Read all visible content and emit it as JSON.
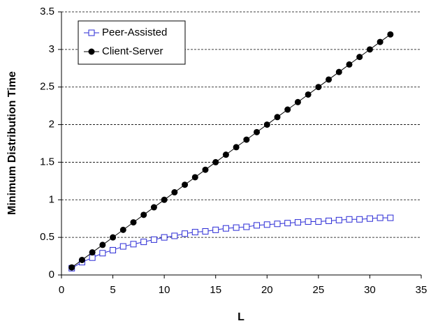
{
  "chart_data": {
    "type": "line",
    "xlabel": "L",
    "ylabel": "Minimum Distribution Time",
    "x": [
      1,
      2,
      3,
      4,
      5,
      6,
      7,
      8,
      9,
      10,
      11,
      12,
      13,
      14,
      15,
      16,
      17,
      18,
      19,
      20,
      21,
      22,
      23,
      24,
      25,
      26,
      27,
      28,
      29,
      30,
      31,
      32
    ],
    "series": [
      {
        "name": "Peer-Assisted",
        "color": "#2b2bd6",
        "marker": "square",
        "values": [
          0.09,
          0.17,
          0.23,
          0.29,
          0.33,
          0.38,
          0.41,
          0.44,
          0.47,
          0.5,
          0.52,
          0.55,
          0.57,
          0.58,
          0.6,
          0.62,
          0.63,
          0.64,
          0.66,
          0.67,
          0.68,
          0.69,
          0.7,
          0.71,
          0.71,
          0.72,
          0.73,
          0.74,
          0.74,
          0.75,
          0.76,
          0.76
        ]
      },
      {
        "name": "Client-Server",
        "color": "#000000",
        "marker": "circle",
        "values": [
          0.1,
          0.2,
          0.3,
          0.4,
          0.5,
          0.6,
          0.7,
          0.8,
          0.9,
          1,
          1.1,
          1.2,
          1.3,
          1.4,
          1.5,
          1.6,
          1.7,
          1.8,
          1.9,
          2,
          2.1,
          2.2,
          2.3,
          2.4,
          2.5,
          2.6,
          2.7,
          2.8,
          2.9,
          3,
          3.1,
          3.2
        ]
      }
    ],
    "xlim": [
      0,
      35
    ],
    "xticks": [
      0,
      5,
      10,
      15,
      20,
      25,
      30,
      35
    ],
    "ylim": [
      0,
      3.5
    ],
    "yticks": [
      0,
      0.5,
      1,
      1.5,
      2,
      2.5,
      3,
      3.5
    ],
    "grid": true,
    "legend": "upper left"
  }
}
